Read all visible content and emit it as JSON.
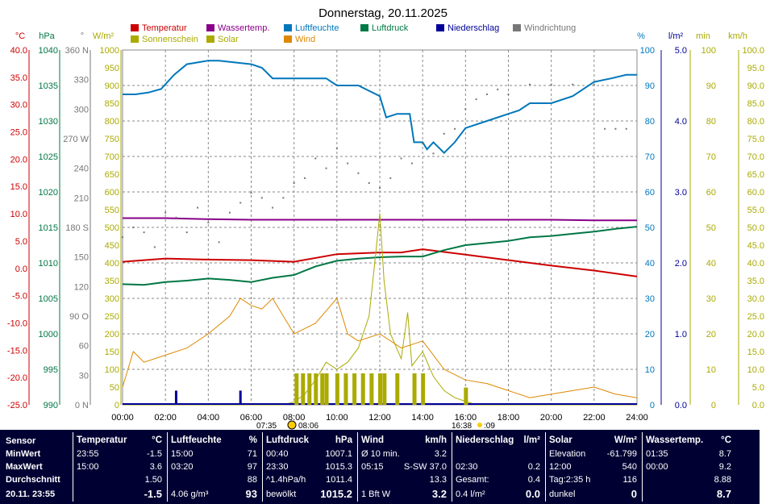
{
  "title": "Donnerstag, 20.11.2025",
  "colors": {
    "temp": "#cc0000",
    "water": "#880088",
    "hum": "#0077bb",
    "press": "#007744",
    "rain": "#000099",
    "wind_dir": "#777777",
    "sun": "#aaaa00",
    "solar": "#aaaa00",
    "wind": "#dd8800"
  },
  "legend": [
    {
      "label": "Temperatur",
      "color": "#cc0000"
    },
    {
      "label": "Wassertemp.",
      "color": "#880088"
    },
    {
      "label": "Luftfeuchte",
      "color": "#0077bb"
    },
    {
      "label": "Luftdruck",
      "color": "#007744"
    },
    {
      "label": "Niederschlag",
      "color": "#000099"
    },
    {
      "label": "Windrichtung",
      "color": "#777777"
    },
    {
      "label": "Sonnenschein",
      "color": "#aaaa00"
    },
    {
      "label": "Solar",
      "color": "#aaaa00"
    },
    {
      "label": "Wind",
      "color": "#dd8800"
    }
  ],
  "axes": {
    "temp": {
      "unit": "°C",
      "ticks": [
        "40.0",
        "35.0",
        "30.0",
        "25.0",
        "20.0",
        "15.0",
        "10.0",
        "5.0",
        "0.0",
        "-5.0",
        "-10.0",
        "-15.0",
        "-20.0",
        "-25.0"
      ]
    },
    "press": {
      "unit": "hPa",
      "ticks": [
        "1040",
        "1035",
        "1030",
        "1025",
        "1020",
        "1015",
        "1010",
        "1005",
        "1000",
        "995",
        "990"
      ]
    },
    "dir": {
      "unit": "°",
      "ticks": [
        "360 N",
        "330",
        "300",
        "270 W",
        "240",
        "210",
        "180 S",
        "150",
        "120",
        "90 O",
        "60",
        "30",
        "0 N"
      ]
    },
    "solar": {
      "unit": "W/m²",
      "ticks": [
        "1000",
        "950",
        "900",
        "850",
        "800",
        "750",
        "700",
        "650",
        "600",
        "550",
        "500",
        "450",
        "400",
        "350",
        "300",
        "250",
        "200",
        "150",
        "100",
        "50",
        "0"
      ]
    },
    "hum": {
      "unit": "%",
      "ticks": [
        "100",
        "90",
        "80",
        "70",
        "60",
        "50",
        "40",
        "30",
        "20",
        "10",
        "0"
      ]
    },
    "rain": {
      "unit": "l/m²",
      "ticks": [
        "5.0",
        "4.0",
        "3.0",
        "2.0",
        "1.0",
        "0.0"
      ]
    },
    "min": {
      "unit": "min",
      "ticks": [
        "100",
        "90",
        "80",
        "70",
        "60",
        "50",
        "40",
        "30",
        "20",
        "10",
        "0"
      ]
    },
    "kmh": {
      "unit": "km/h",
      "ticks": [
        "100.0",
        "95.0",
        "90.0",
        "85.0",
        "80.0",
        "75.0",
        "70.0",
        "65.0",
        "60.0",
        "55.0",
        "50.0",
        "45.0",
        "40.0",
        "35.0",
        "30.0",
        "25.0",
        "20.0",
        "15.0",
        "10.0",
        "5.0",
        "0.0"
      ]
    },
    "time": [
      "00:00",
      "02:00",
      "04:00",
      "06:00",
      "08:00",
      "10:00",
      "12:00",
      "14:00",
      "16:00",
      "18:00",
      "20:00",
      "22:00",
      "24:00"
    ]
  },
  "sun_times": {
    "rise": "07:35",
    "set": "08:06",
    "rise2": "16:38",
    "set2": ":09"
  },
  "chart_data": {
    "type": "line",
    "x_unit": "hour of day",
    "xlim": [
      0,
      24
    ],
    "series": [
      {
        "name": "Temperatur",
        "axis": "°C",
        "ylim": [
          -25,
          40
        ],
        "x": [
          0,
          2,
          4,
          6,
          8,
          10,
          12,
          13,
          14,
          16,
          18,
          20,
          22,
          24
        ],
        "values": [
          1.2,
          1.8,
          1.6,
          1.5,
          1.2,
          2.6,
          2.9,
          2.9,
          3.5,
          2.5,
          1.5,
          0.5,
          -0.4,
          -1.5
        ]
      },
      {
        "name": "Wassertemp.",
        "axis": "°C",
        "ylim": [
          -25,
          40
        ],
        "x": [
          0,
          2,
          4,
          6,
          8,
          10,
          12,
          14,
          16,
          18,
          20,
          22,
          24
        ],
        "values": [
          9.2,
          9.2,
          9.0,
          8.9,
          8.9,
          8.9,
          8.9,
          8.9,
          8.9,
          8.9,
          8.9,
          8.8,
          8.8
        ]
      },
      {
        "name": "Luftfeuchte",
        "axis": "%",
        "ylim": [
          0,
          100
        ],
        "x": [
          0,
          0.6,
          1.2,
          1.8,
          2.4,
          3.0,
          4.0,
          4.5,
          6.0,
          6.5,
          7.0,
          8.0,
          9.5,
          10.0,
          11.0,
          12.0,
          12.3,
          12.8,
          13.4,
          13.6,
          14.0,
          14.2,
          14.5,
          15.0,
          15.5,
          16.0,
          17.0,
          18.0,
          18.5,
          19.0,
          20.0,
          21.0,
          22.0,
          22.8,
          23.5,
          24
        ],
        "values": [
          87.5,
          87.5,
          88,
          89,
          93,
          96,
          97,
          97,
          96,
          95,
          92,
          92,
          92,
          90,
          90,
          87,
          81,
          82,
          82,
          74,
          74,
          72,
          74,
          71,
          74,
          78,
          80,
          82,
          83,
          85,
          85,
          87,
          91,
          92,
          93,
          93
        ]
      },
      {
        "name": "Luftdruck",
        "axis": "hPa",
        "ylim": [
          990,
          1040
        ],
        "x": [
          0,
          1,
          2,
          3,
          4,
          5,
          6,
          7,
          8,
          9,
          10,
          11,
          12,
          13,
          14,
          15,
          16,
          17,
          18,
          19,
          20,
          21,
          22,
          23,
          24
        ],
        "values": [
          1007.0,
          1006.9,
          1007.3,
          1007.5,
          1007.8,
          1007.6,
          1007.3,
          1007.9,
          1008.3,
          1009.5,
          1010.3,
          1010.6,
          1010.8,
          1010.9,
          1010.9,
          1011.8,
          1012.5,
          1012.8,
          1013.1,
          1013.6,
          1013.8,
          1014.1,
          1014.4,
          1014.8,
          1015.1
        ]
      },
      {
        "name": "Solar",
        "axis": "W/m²",
        "ylim": [
          0,
          1000
        ],
        "x": [
          0,
          6.5,
          7.0,
          7.5,
          8.0,
          8.5,
          9.0,
          9.5,
          10.0,
          10.5,
          11.0,
          11.5,
          11.8,
          12.0,
          12.2,
          12.5,
          13.0,
          13.3,
          13.5,
          14.0,
          14.5,
          15.0,
          15.5,
          16.0,
          16.5,
          24
        ],
        "values": [
          0,
          0,
          0,
          0,
          8,
          30,
          70,
          120,
          100,
          120,
          160,
          250,
          420,
          540,
          350,
          200,
          130,
          260,
          110,
          150,
          80,
          40,
          20,
          10,
          0,
          0
        ]
      },
      {
        "name": "Wind",
        "axis": "km/h",
        "ylim": [
          0,
          100
        ],
        "x": [
          0,
          0.5,
          1,
          2,
          3,
          4,
          5,
          5.5,
          6,
          6.5,
          7,
          7.5,
          8,
          9,
          10,
          10.5,
          11,
          12,
          13,
          14,
          15,
          16,
          17,
          18,
          19,
          20,
          21,
          22,
          23,
          24
        ],
        "values": [
          5,
          15,
          12,
          14,
          16,
          20,
          25,
          30,
          28,
          27,
          30,
          25,
          20,
          23,
          30,
          20,
          18,
          20,
          16,
          18,
          10,
          7,
          6,
          4,
          2,
          3,
          4,
          5,
          3,
          2
        ]
      },
      {
        "name": "Windrichtung",
        "axis": "°",
        "ylim": [
          0,
          360
        ],
        "x": [
          0,
          0.5,
          1,
          1.5,
          2,
          2.5,
          3,
          3.5,
          4,
          4.5,
          5,
          5.5,
          6,
          6.5,
          7,
          7.5,
          8,
          8.5,
          9,
          9.5,
          10,
          10.5,
          11,
          11.5,
          12,
          12.5,
          13,
          13.5,
          14,
          14.5,
          15,
          15.5,
          16,
          16.5,
          17,
          17.5,
          18,
          19,
          20,
          21,
          22,
          22.5,
          23,
          23.5
        ],
        "values": [
          170,
          180,
          175,
          160,
          195,
          190,
          175,
          200,
          185,
          165,
          195,
          205,
          215,
          210,
          200,
          210,
          225,
          230,
          250,
          240,
          260,
          245,
          235,
          225,
          220,
          230,
          250,
          245,
          265,
          255,
          275,
          280,
          300,
          310,
          315,
          320,
          315,
          325,
          325,
          325,
          325,
          280,
          280,
          280
        ]
      },
      {
        "name": "Niederschlag",
        "axis": "l/m²",
        "ylim": [
          0,
          5
        ],
        "x": [
          2.5,
          5.5
        ],
        "values": [
          0.2,
          0.2
        ]
      },
      {
        "name": "Sonnenschein",
        "axis": "min",
        "ylim": [
          0,
          100
        ],
        "x": [
          8.1,
          8.4,
          8.7,
          9.0,
          9.3,
          9.5,
          10.0,
          10.4,
          10.8,
          11.2,
          11.6,
          12.0,
          12.2,
          12.8,
          13.6,
          14.0,
          16.0
        ],
        "values": [
          5,
          5,
          5,
          5,
          5,
          5,
          5,
          5,
          5,
          5,
          5,
          5,
          5,
          5,
          5,
          5,
          1
        ]
      }
    ]
  },
  "table": {
    "row_labels": [
      "Sensor",
      "MinWert",
      "MaxWert",
      "Durchschnitt",
      "20.11. 23:55"
    ],
    "cols": [
      {
        "name": "Temperatur",
        "unit": "°C",
        "rows": [
          [
            "23:55",
            "-1.5"
          ],
          [
            "15:00",
            "3.6"
          ],
          [
            "",
            "1.50"
          ],
          [
            "",
            "-1.5"
          ]
        ]
      },
      {
        "name": "Luftfeuchte",
        "unit": "%",
        "rows": [
          [
            "15:00",
            "71"
          ],
          [
            "03:20",
            "97"
          ],
          [
            "",
            "88"
          ],
          [
            "4.06 g/m³",
            "93"
          ]
        ]
      },
      {
        "name": "Luftdruck",
        "unit": "hPa",
        "rows": [
          [
            "00:40",
            "1007.1"
          ],
          [
            "23:30",
            "1015.3"
          ],
          [
            "^1.4hPa/h",
            "1011.4"
          ],
          [
            "bewölkt",
            "1015.2"
          ]
        ]
      },
      {
        "name": "Wind",
        "unit": "km/h",
        "rows": [
          [
            "Ø 10 min.",
            "3.2"
          ],
          [
            "05:15",
            "S-SW 37.0"
          ],
          [
            "",
            "13.3"
          ],
          [
            "1 Bft W",
            "3.2"
          ]
        ]
      },
      {
        "name": "Niederschlag",
        "unit": "l/m²",
        "rows": [
          [
            "",
            ""
          ],
          [
            "02:30",
            "0.2"
          ],
          [
            "Gesamt:",
            "0.4"
          ],
          [
            "0.4 l/m²",
            "0.0"
          ]
        ]
      },
      {
        "name": "Solar",
        "unit": "W/m²",
        "rows": [
          [
            "Elevation",
            "-61.799"
          ],
          [
            "12:00",
            "540"
          ],
          [
            "Tag:2:35 h",
            "116"
          ],
          [
            "dunkel",
            "0"
          ]
        ]
      },
      {
        "name": "Wassertemp.",
        "unit": "°C",
        "rows": [
          [
            "01:35",
            "8.7"
          ],
          [
            "00:00",
            "9.2"
          ],
          [
            "",
            "8.88"
          ],
          [
            "",
            "8.7"
          ]
        ]
      }
    ]
  }
}
